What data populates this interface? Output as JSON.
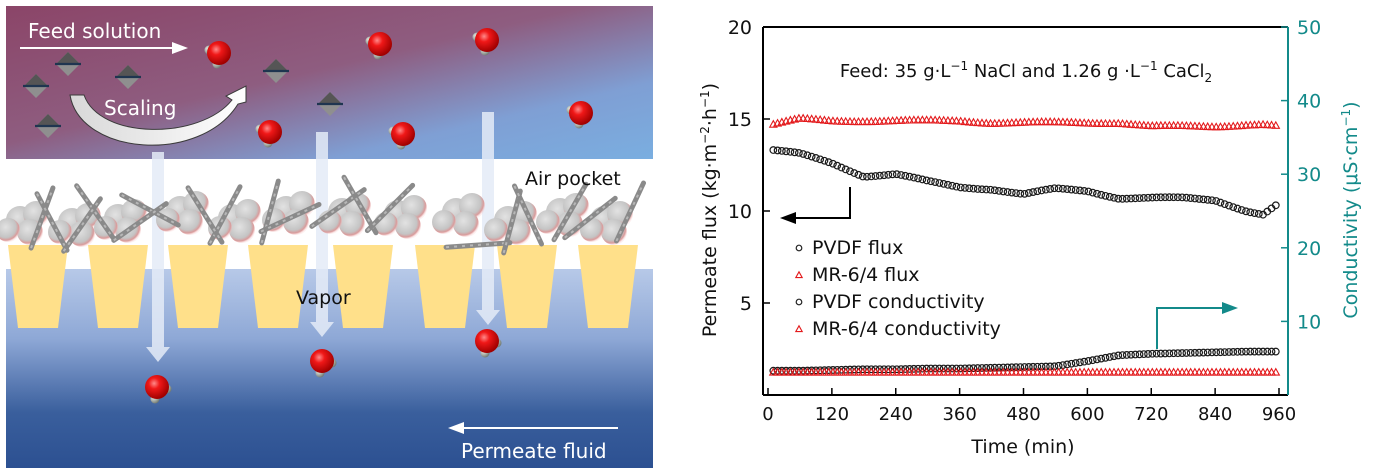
{
  "schematic": {
    "labels": {
      "feed_solution": "Feed solution",
      "scaling": "Scaling",
      "air_pocket": "Air pocket",
      "vapor": "Vapor",
      "permeate_fluid": "Permeate fluid"
    },
    "colors": {
      "feed_top": "#8c4a6c",
      "feed_bottom": "#7fa9dc",
      "permeate_top": "#b4c7e6",
      "permeate_bottom": "#2e5494",
      "pillar": "#ffe38a",
      "water_oxygen": "#e8141a",
      "water_hydrogen": "#9aa29a"
    }
  },
  "chart_data": {
    "type": "scatter",
    "title": "Feed: 35 g·L⁻¹ NaCl and 1.26 g ·L⁻¹ CaCl₂",
    "title_parts": {
      "prefix": "Feed: 35 g·L",
      "sup1": "−1",
      "mid": " NaCl and 1.26 g ·L",
      "sup2": "−1",
      "tail": " CaCl",
      "sub": "2"
    },
    "xlabel": "Time (min)",
    "ylabel_left": "Permeate flux (kg·m⁻²·h⁻¹)",
    "ylabel_right": "Conductivity (μS·cm⁻¹)",
    "xlim": [
      -10,
      970
    ],
    "ylim_left": [
      0,
      20
    ],
    "ylim_right": [
      0,
      50
    ],
    "xticks": [
      0,
      120,
      240,
      360,
      480,
      600,
      720,
      840,
      960
    ],
    "yticks_left": [
      5,
      10,
      15,
      20
    ],
    "yticks_right": [
      10,
      20,
      30,
      40,
      50
    ],
    "grid": false,
    "legend_position": "lower-left",
    "legend": [
      {
        "label": "PVDF flux",
        "marker": "circle",
        "color": "#222222"
      },
      {
        "label": "MR-6/4 flux",
        "marker": "triangle",
        "color": "#e31a1c"
      },
      {
        "label": "PVDF conductivity",
        "marker": "circle",
        "color": "#222222"
      },
      {
        "label": "MR-6/4 conductivity",
        "marker": "triangle",
        "color": "#e31a1c"
      }
    ],
    "annotations": [
      {
        "type": "arrow",
        "points_to": "left-axis",
        "attached_series": "PVDF flux",
        "color": "#000000"
      },
      {
        "type": "arrow",
        "points_to": "right-axis",
        "attached_series": "PVDF conductivity",
        "color": "#138a8a"
      }
    ],
    "colors": {
      "left_axis": "#000000",
      "right_axis": "#138a8a"
    },
    "x": [
      10,
      60,
      120,
      180,
      240,
      300,
      360,
      420,
      480,
      540,
      600,
      660,
      720,
      780,
      840,
      900,
      930,
      960
    ],
    "series": [
      {
        "name": "PVDF flux",
        "axis": "left",
        "values": [
          13.3,
          13.1,
          12.6,
          11.9,
          12.0,
          11.6,
          11.3,
          11.2,
          10.9,
          11.2,
          11.1,
          10.7,
          10.7,
          10.7,
          10.6,
          10.0,
          9.8,
          10.4
        ]
      },
      {
        "name": "MR-6/4 flux",
        "axis": "left",
        "values": [
          14.7,
          15.0,
          14.9,
          14.9,
          14.9,
          14.9,
          14.9,
          14.8,
          14.8,
          14.8,
          14.8,
          14.8,
          14.6,
          14.6,
          14.6,
          14.7,
          14.7,
          14.6
        ]
      },
      {
        "name": "PVDF conductivity",
        "axis": "right",
        "values": [
          3.3,
          3.3,
          3.4,
          3.5,
          3.5,
          3.6,
          3.6,
          3.7,
          3.8,
          3.9,
          4.6,
          5.4,
          5.6,
          5.7,
          5.8,
          5.9,
          5.9,
          5.9
        ]
      },
      {
        "name": "MR-6/4 conductivity",
        "axis": "right",
        "values": [
          3.1,
          3.1,
          3.1,
          3.1,
          3.1,
          3.1,
          3.1,
          3.1,
          3.1,
          3.1,
          3.1,
          3.1,
          3.1,
          3.1,
          3.1,
          3.1,
          3.1,
          3.1
        ]
      }
    ]
  }
}
